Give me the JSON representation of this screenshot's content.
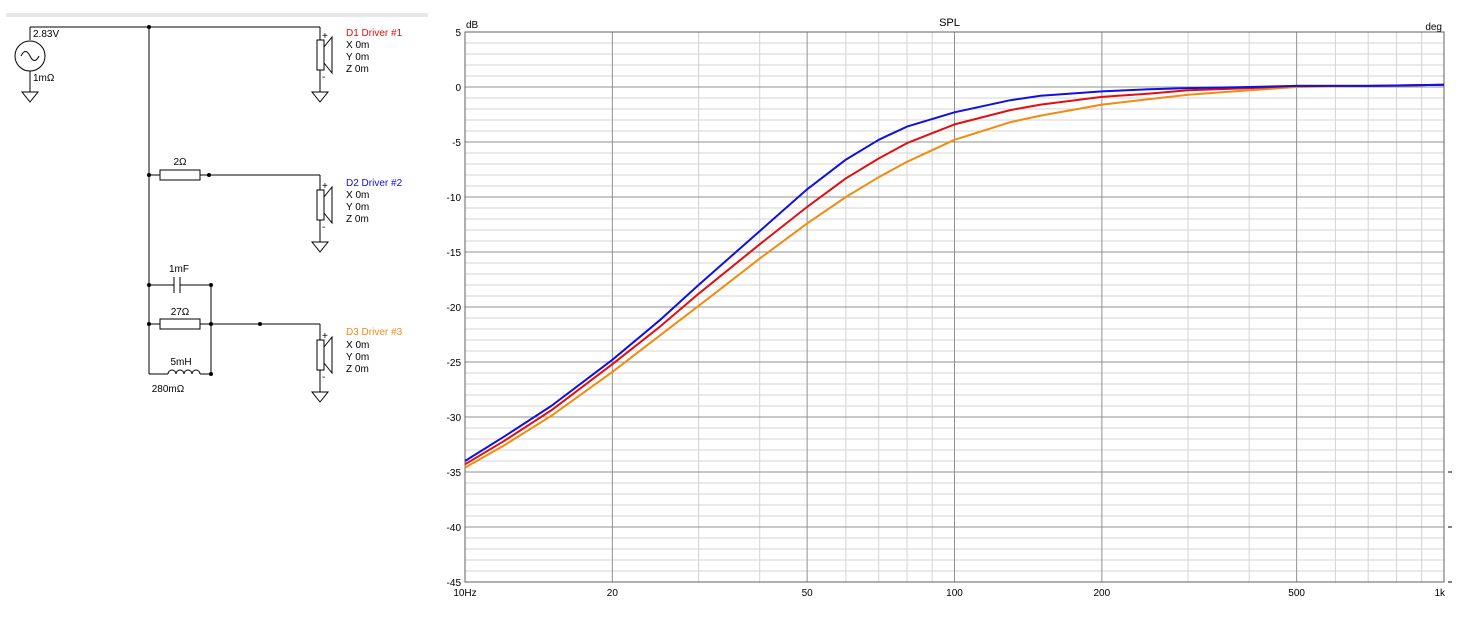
{
  "schematic": {
    "source": {
      "voltage": "2.83V",
      "resistance": "1mΩ"
    },
    "drivers": [
      {
        "name": "D1 Driver #1",
        "color": "#e01010",
        "x": "X 0m",
        "y": "Y 0m",
        "z": "Z 0m"
      },
      {
        "name": "D2 Driver #2",
        "color": "#1010e0",
        "x": "X 0m",
        "y": "Y 0m",
        "z": "Z 0m"
      },
      {
        "name": "D3 Driver #3",
        "color": "#f08c10",
        "x": "X 0m",
        "y": "Y 0m",
        "z": "Z 0m"
      }
    ],
    "components": {
      "r_d2": "2Ω",
      "c_d3": "1mF",
      "r_d3": "27Ω",
      "l_d3": "5mH",
      "l_d3_res": "280mΩ"
    },
    "polarity_plus": "+",
    "polarity_minus": "-"
  },
  "chart_data": {
    "type": "line",
    "title": "SPL",
    "ylabel": "dB",
    "y2label": "deg",
    "x_scale": "log",
    "xlim": [
      10,
      1000
    ],
    "ylim": [
      -45,
      5
    ],
    "grid": true,
    "x_ticks": [
      {
        "value": 10,
        "label": "10Hz"
      },
      {
        "value": 20,
        "label": "20"
      },
      {
        "value": 50,
        "label": "50"
      },
      {
        "value": 100,
        "label": "100"
      },
      {
        "value": 200,
        "label": "200"
      },
      {
        "value": 500,
        "label": "500"
      },
      {
        "value": 1000,
        "label": "1k"
      }
    ],
    "y_ticks": [
      5,
      0,
      -5,
      -10,
      -15,
      -20,
      -25,
      -30,
      -35,
      -40,
      -45
    ],
    "series": [
      {
        "color": "#1010e0",
        "x": [
          10,
          12,
          15,
          20,
          25,
          30,
          40,
          50,
          60,
          70,
          80,
          100,
          130,
          150,
          200,
          250,
          300,
          400,
          500,
          700,
          1000
        ],
        "y": [
          -34.0,
          -31.8,
          -29.0,
          -24.8,
          -21.2,
          -18.0,
          -13.1,
          -9.3,
          -6.6,
          -4.8,
          -3.6,
          -2.3,
          -1.2,
          -0.8,
          -0.4,
          -0.2,
          -0.1,
          0.0,
          0.1,
          0.1,
          0.2
        ]
      },
      {
        "color": "#e01010",
        "x": [
          10,
          12,
          15,
          20,
          25,
          30,
          40,
          50,
          60,
          70,
          80,
          100,
          130,
          150,
          200,
          250,
          300,
          400,
          500,
          700,
          1000
        ],
        "y": [
          -34.3,
          -32.2,
          -29.4,
          -25.2,
          -21.8,
          -18.8,
          -14.3,
          -10.9,
          -8.3,
          -6.5,
          -5.1,
          -3.4,
          -2.1,
          -1.6,
          -0.9,
          -0.6,
          -0.3,
          -0.1,
          0.1,
          0.1,
          0.2
        ]
      },
      {
        "color": "#f08c10",
        "x": [
          10,
          12,
          15,
          20,
          25,
          30,
          40,
          50,
          60,
          70,
          80,
          100,
          130,
          150,
          200,
          250,
          300,
          400,
          500,
          700,
          1000
        ],
        "y": [
          -34.6,
          -32.6,
          -29.9,
          -25.9,
          -22.6,
          -19.9,
          -15.6,
          -12.4,
          -10.0,
          -8.2,
          -6.8,
          -4.8,
          -3.2,
          -2.6,
          -1.6,
          -1.1,
          -0.7,
          -0.3,
          0.0,
          0.1,
          0.2
        ]
      }
    ]
  }
}
